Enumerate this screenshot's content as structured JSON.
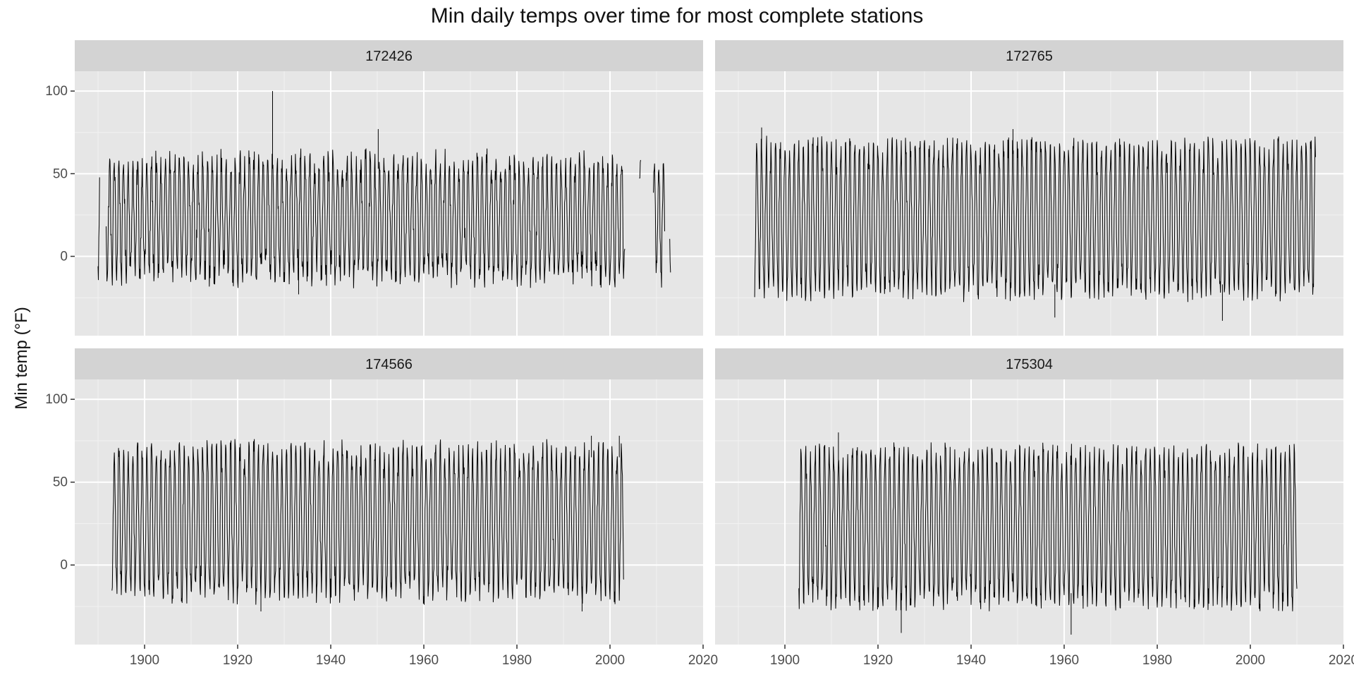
{
  "chart_data": {
    "type": "line",
    "title": "Min daily temps over time for most complete stations",
    "xlabel": "",
    "ylabel": "Min temp (°F)",
    "xlim": [
      1885,
      2020
    ],
    "ylim": [
      -48,
      112
    ],
    "x_ticks": [
      1900,
      1920,
      1940,
      1960,
      1980,
      2000,
      2020
    ],
    "y_ticks": [
      0,
      50,
      100
    ],
    "grid": true,
    "legend": "none",
    "line_color": "#000000",
    "panel_background": "#e6e6e6",
    "strip_background": "#d3d3d3",
    "facets": [
      {
        "station": "172426",
        "data_range": [
          1890,
          2013
        ],
        "typical_max": 58,
        "typical_min": -12,
        "gaps": [
          [
            1890.4,
            1891.7
          ],
          [
            2003.2,
            2006.3
          ],
          [
            2006.6,
            2009.3
          ],
          [
            2011.8,
            2012.8
          ]
        ],
        "outliers": [
          {
            "x": 1927.5,
            "y": 100
          },
          {
            "x": 1950.2,
            "y": 77
          },
          {
            "x": 1933.1,
            "y": -23
          }
        ]
      },
      {
        "station": "172765",
        "data_range": [
          1893.5,
          2014
        ],
        "typical_max": 67,
        "typical_min": -22,
        "gaps": [],
        "outliers": [
          {
            "x": 1895,
            "y": 78
          },
          {
            "x": 1949,
            "y": 77
          },
          {
            "x": 1994,
            "y": -39
          },
          {
            "x": 1958,
            "y": -37
          }
        ]
      },
      {
        "station": "174566",
        "data_range": [
          1893,
          2003
        ],
        "typical_max": 70,
        "typical_min": -18,
        "gaps": [],
        "outliers": [
          {
            "x": 1996,
            "y": 78
          },
          {
            "x": 2002,
            "y": 78
          },
          {
            "x": 1925,
            "y": -28
          },
          {
            "x": 1994,
            "y": -28
          }
        ]
      },
      {
        "station": "175304",
        "data_range": [
          1903,
          2010
        ],
        "typical_max": 68,
        "typical_min": -22,
        "gaps": [],
        "outliers": [
          {
            "x": 1911.5,
            "y": 80
          },
          {
            "x": 1961.5,
            "y": -42
          },
          {
            "x": 1925,
            "y": -41
          }
        ]
      }
    ]
  }
}
